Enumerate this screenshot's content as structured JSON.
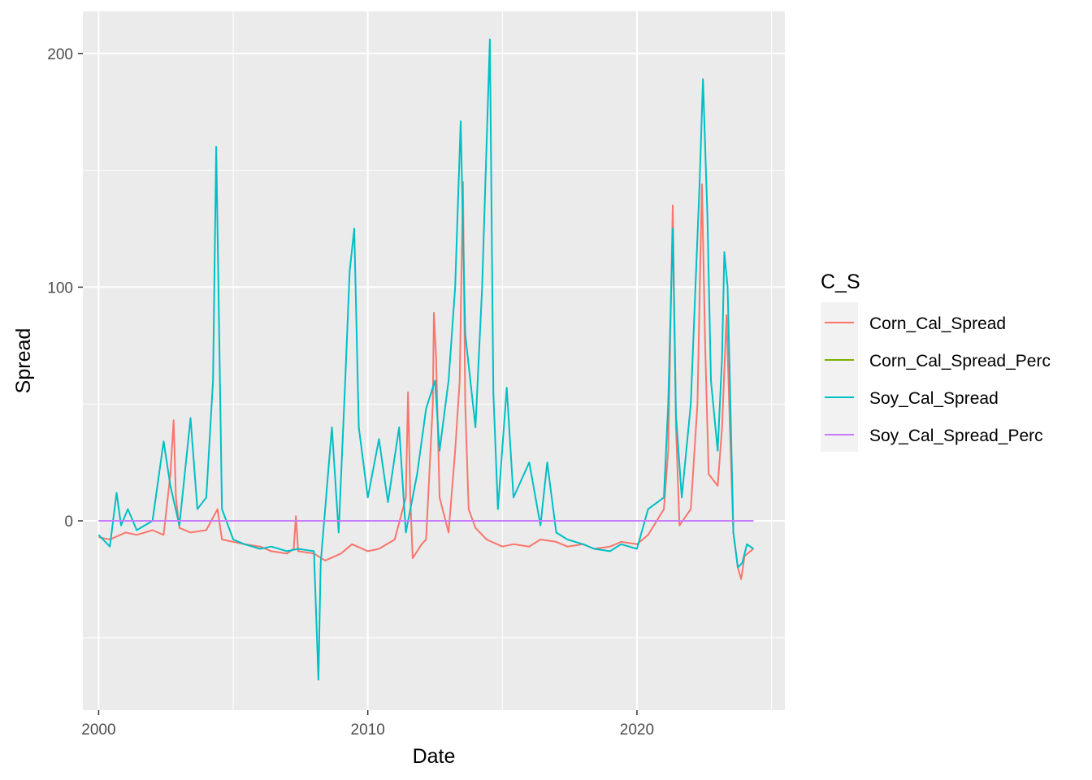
{
  "chart_data": {
    "type": "line",
    "xlabel": "Date",
    "ylabel": "Spread",
    "x_ticks": [
      "2000",
      "2010",
      "2020"
    ],
    "y_ticks": [
      "0",
      "100",
      "200"
    ],
    "xlim": [
      "1999-06-01",
      "2025-07-01"
    ],
    "ylim": [
      -81,
      218
    ],
    "grid": true,
    "legend": {
      "title": "C_S",
      "placement": "right"
    },
    "series": [
      {
        "name": "Corn_Cal_Spread",
        "color": "#F8766D",
        "points": [
          [
            "2000-01-01",
            -7
          ],
          [
            "2000-06-01",
            -8
          ],
          [
            "2001-01-01",
            -5
          ],
          [
            "2001-06-01",
            -6
          ],
          [
            "2002-01-01",
            -4
          ],
          [
            "2002-06-01",
            -6
          ],
          [
            "2002-09-01",
            20
          ],
          [
            "2002-10-15",
            43
          ],
          [
            "2002-11-15",
            10
          ],
          [
            "2003-01-01",
            -3
          ],
          [
            "2003-06-01",
            -5
          ],
          [
            "2004-01-01",
            -4
          ],
          [
            "2004-06-01",
            5
          ],
          [
            "2004-08-01",
            -8
          ],
          [
            "2005-01-01",
            -9
          ],
          [
            "2005-06-01",
            -10
          ],
          [
            "2006-01-01",
            -11
          ],
          [
            "2006-06-01",
            -13
          ],
          [
            "2007-01-01",
            -14
          ],
          [
            "2007-04-01",
            -12
          ],
          [
            "2007-05-01",
            2
          ],
          [
            "2007-06-01",
            -13
          ],
          [
            "2008-01-01",
            -14
          ],
          [
            "2008-06-01",
            -17
          ],
          [
            "2009-01-01",
            -14
          ],
          [
            "2009-06-01",
            -10
          ],
          [
            "2010-01-01",
            -13
          ],
          [
            "2010-06-01",
            -12
          ],
          [
            "2011-01-01",
            -8
          ],
          [
            "2011-06-01",
            10
          ],
          [
            "2011-07-01",
            55
          ],
          [
            "2011-08-01",
            10
          ],
          [
            "2011-09-01",
            -16
          ],
          [
            "2012-01-01",
            -10
          ],
          [
            "2012-03-01",
            -8
          ],
          [
            "2012-06-01",
            50
          ],
          [
            "2012-06-15",
            89
          ],
          [
            "2012-07-15",
            70
          ],
          [
            "2012-09-01",
            10
          ],
          [
            "2013-01-01",
            -5
          ],
          [
            "2013-04-01",
            30
          ],
          [
            "2013-06-01",
            60
          ],
          [
            "2013-07-15",
            145
          ],
          [
            "2013-08-15",
            50
          ],
          [
            "2013-10-01",
            5
          ],
          [
            "2014-01-01",
            -3
          ],
          [
            "2014-06-01",
            -8
          ],
          [
            "2015-01-01",
            -11
          ],
          [
            "2015-06-01",
            -10
          ],
          [
            "2016-01-01",
            -11
          ],
          [
            "2016-06-01",
            -8
          ],
          [
            "2017-01-01",
            -9
          ],
          [
            "2017-06-01",
            -11
          ],
          [
            "2018-01-01",
            -10
          ],
          [
            "2018-06-01",
            -12
          ],
          [
            "2019-01-01",
            -11
          ],
          [
            "2019-06-01",
            -9
          ],
          [
            "2020-01-01",
            -10
          ],
          [
            "2020-06-01",
            -6
          ],
          [
            "2021-01-01",
            5
          ],
          [
            "2021-03-01",
            30
          ],
          [
            "2021-05-01",
            135
          ],
          [
            "2021-06-15",
            40
          ],
          [
            "2021-08-01",
            -2
          ],
          [
            "2022-01-01",
            5
          ],
          [
            "2022-04-01",
            50
          ],
          [
            "2022-06-01",
            144
          ],
          [
            "2022-07-15",
            75
          ],
          [
            "2022-09-01",
            20
          ],
          [
            "2023-01-01",
            15
          ],
          [
            "2023-03-01",
            40
          ],
          [
            "2023-05-01",
            88
          ],
          [
            "2023-06-15",
            40
          ],
          [
            "2023-08-01",
            -5
          ],
          [
            "2023-10-01",
            -20
          ],
          [
            "2023-11-15",
            -25
          ],
          [
            "2024-01-01",
            -15
          ],
          [
            "2024-04-30",
            -12
          ]
        ]
      },
      {
        "name": "Corn_Cal_Spread_Perc",
        "color": "#7CAE00",
        "points": [
          [
            "2000-01-01",
            0
          ],
          [
            "2024-04-30",
            0
          ]
        ]
      },
      {
        "name": "Soy_Cal_Spread",
        "color": "#00BFC4",
        "points": [
          [
            "2000-01-01",
            -6
          ],
          [
            "2000-06-01",
            -11
          ],
          [
            "2000-09-01",
            12
          ],
          [
            "2000-11-01",
            -2
          ],
          [
            "2001-02-01",
            5
          ],
          [
            "2001-06-01",
            -4
          ],
          [
            "2002-01-01",
            0
          ],
          [
            "2002-06-01",
            34
          ],
          [
            "2002-09-01",
            15
          ],
          [
            "2003-01-01",
            -2
          ],
          [
            "2003-06-01",
            44
          ],
          [
            "2003-09-01",
            5
          ],
          [
            "2004-01-01",
            10
          ],
          [
            "2004-04-01",
            60
          ],
          [
            "2004-05-15",
            160
          ],
          [
            "2004-06-15",
            97
          ],
          [
            "2004-08-01",
            5
          ],
          [
            "2005-01-01",
            -8
          ],
          [
            "2005-06-01",
            -10
          ],
          [
            "2006-01-01",
            -12
          ],
          [
            "2006-06-01",
            -11
          ],
          [
            "2007-01-01",
            -13
          ],
          [
            "2007-06-01",
            -12
          ],
          [
            "2008-01-01",
            -13
          ],
          [
            "2008-03-01",
            -68
          ],
          [
            "2008-04-01",
            -18
          ],
          [
            "2008-06-01",
            5
          ],
          [
            "2008-09-01",
            40
          ],
          [
            "2008-12-01",
            -5
          ],
          [
            "2009-03-01",
            60
          ],
          [
            "2009-05-01",
            107
          ],
          [
            "2009-07-01",
            125
          ],
          [
            "2009-09-01",
            40
          ],
          [
            "2010-01-01",
            10
          ],
          [
            "2010-06-01",
            35
          ],
          [
            "2010-10-01",
            8
          ],
          [
            "2011-03-01",
            40
          ],
          [
            "2011-06-01",
            -5
          ],
          [
            "2011-11-01",
            20
          ],
          [
            "2012-03-01",
            48
          ],
          [
            "2012-07-01",
            60
          ],
          [
            "2012-09-01",
            30
          ],
          [
            "2013-01-01",
            60
          ],
          [
            "2013-04-01",
            100
          ],
          [
            "2013-06-15",
            171
          ],
          [
            "2013-08-15",
            80
          ],
          [
            "2014-01-01",
            40
          ],
          [
            "2014-04-01",
            100
          ],
          [
            "2014-07-15",
            206
          ],
          [
            "2014-09-01",
            55
          ],
          [
            "2014-11-01",
            5
          ],
          [
            "2015-03-01",
            57
          ],
          [
            "2015-06-01",
            10
          ],
          [
            "2016-01-01",
            25
          ],
          [
            "2016-06-01",
            -2
          ],
          [
            "2016-09-01",
            25
          ],
          [
            "2017-01-01",
            -5
          ],
          [
            "2017-06-01",
            -8
          ],
          [
            "2018-01-01",
            -10
          ],
          [
            "2018-06-01",
            -12
          ],
          [
            "2019-01-01",
            -13
          ],
          [
            "2019-06-01",
            -10
          ],
          [
            "2020-01-01",
            -12
          ],
          [
            "2020-06-01",
            5
          ],
          [
            "2021-01-01",
            10
          ],
          [
            "2021-03-01",
            50
          ],
          [
            "2021-05-01",
            125
          ],
          [
            "2021-06-15",
            45
          ],
          [
            "2021-09-01",
            10
          ],
          [
            "2022-01-01",
            50
          ],
          [
            "2022-05-01",
            145
          ],
          [
            "2022-06-15",
            189
          ],
          [
            "2022-08-15",
            130
          ],
          [
            "2022-10-01",
            60
          ],
          [
            "2023-01-01",
            30
          ],
          [
            "2023-03-01",
            70
          ],
          [
            "2023-04-01",
            115
          ],
          [
            "2023-05-15",
            100
          ],
          [
            "2023-06-15",
            60
          ],
          [
            "2023-08-01",
            -5
          ],
          [
            "2023-10-01",
            -20
          ],
          [
            "2023-12-01",
            -18
          ],
          [
            "2024-02-01",
            -10
          ],
          [
            "2024-04-30",
            -12
          ]
        ]
      },
      {
        "name": "Soy_Cal_Spread_Perc",
        "color": "#C77CFF",
        "points": [
          [
            "2000-01-01",
            0
          ],
          [
            "2024-04-30",
            0
          ]
        ]
      }
    ]
  }
}
